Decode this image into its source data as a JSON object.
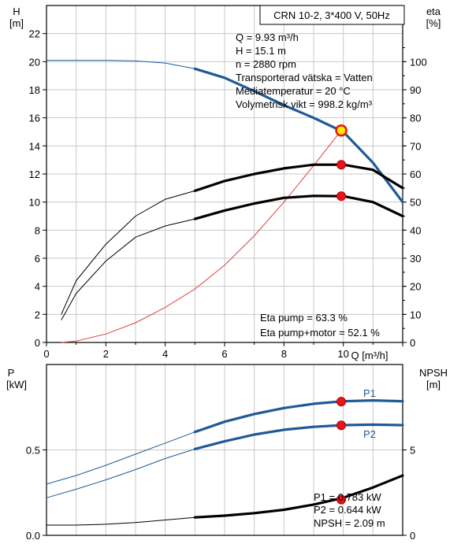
{
  "chart_data": [
    {
      "type": "line",
      "title": "CRN 10-2, 3*400 V, 50Hz",
      "xlabel": "Q [m³/h]",
      "ylabel_left": "H",
      "ylabel_left_unit": "[m]",
      "ylabel_right": "eta",
      "ylabel_right_unit": "[%]",
      "xlim": [
        0,
        12
      ],
      "ylim_left": [
        0,
        24
      ],
      "ylim_right": [
        0,
        120
      ],
      "x_ticks": [
        "0",
        "2",
        "4",
        "6",
        "8",
        "10"
      ],
      "y_left_ticks": [
        "0",
        "2",
        "4",
        "6",
        "8",
        "10",
        "12",
        "14",
        "16",
        "18",
        "20",
        "22"
      ],
      "y_right_ticks": [
        "0",
        "10",
        "20",
        "30",
        "40",
        "50",
        "60",
        "70",
        "80",
        "90",
        "100"
      ],
      "grid": true,
      "info_lines": [
        "Q = 9.93 m³/h",
        "H = 15.1 m",
        "n = 2880 rpm",
        "Transporterad vätska = Vatten",
        "Mediatemperatur = 20 °C",
        "Volymetrisk vikt = 998.2 kg/m³"
      ],
      "eff_lines": [
        "Eta pump = 63.3 %",
        "Eta pump+motor = 52.1 %"
      ],
      "duty_point": {
        "q": 9.93,
        "h": 15.1,
        "eta_pump": 63.3,
        "eta_total": 52.1
      },
      "series": [
        {
          "key": "head",
          "axis": "left",
          "color": "#1f5a96",
          "thick_from": 5,
          "x": [
            0.0,
            1,
            2,
            3,
            4,
            5,
            6,
            7,
            8,
            9,
            10,
            11,
            12
          ],
          "y": [
            20.1,
            20.1,
            20.1,
            20.05,
            19.9,
            19.5,
            18.85,
            17.9,
            16.9,
            16.0,
            15.0,
            12.8,
            10.0
          ]
        },
        {
          "key": "system",
          "axis": "left",
          "color": "#e04040",
          "thick_from": 99,
          "x": [
            0.5,
            1,
            2,
            3,
            4,
            5,
            6,
            7,
            8,
            9,
            9.93
          ],
          "y": [
            0.0,
            0.1,
            0.6,
            1.4,
            2.5,
            3.8,
            5.5,
            7.6,
            10.0,
            12.6,
            15.1
          ]
        },
        {
          "key": "eta_pump",
          "axis": "right",
          "color": "#000000",
          "thick_from": 5,
          "x": [
            0.5,
            1,
            2,
            3,
            4,
            5,
            6,
            7,
            8,
            9,
            10,
            11,
            12
          ],
          "y": [
            10.0,
            22.0,
            35.0,
            45.0,
            51.0,
            54.0,
            57.5,
            60.0,
            62.0,
            63.3,
            63.3,
            61.5,
            55.0
          ]
        },
        {
          "key": "eta_total",
          "axis": "right",
          "color": "#000000",
          "thick_from": 5,
          "x": [
            0.5,
            1,
            2,
            3,
            4,
            5,
            6,
            7,
            8,
            9,
            10,
            11,
            12
          ],
          "y": [
            8.0,
            17.5,
            29.0,
            37.5,
            41.5,
            44.0,
            47.0,
            49.5,
            51.5,
            52.2,
            52.1,
            50.0,
            45.0
          ]
        }
      ]
    },
    {
      "type": "line",
      "ylabel_left": "P",
      "ylabel_left_unit": "[kW]",
      "ylabel_right": "NPSH",
      "ylabel_right_unit": "[m]",
      "xlim": [
        0,
        12
      ],
      "ylim_left": [
        0,
        1.0
      ],
      "ylim_right": [
        0,
        10
      ],
      "y_left_ticks": [
        "0.0",
        "0.5"
      ],
      "y_right_ticks": [
        "0",
        "5"
      ],
      "grid": true,
      "curve_labels": [
        "P1",
        "P2"
      ],
      "value_lines": [
        "P1 = 0.783 kW",
        "P2 = 0.644 kW",
        "NPSH = 2.09 m"
      ],
      "duty_point": {
        "q": 9.93,
        "p1": 0.783,
        "p2": 0.644,
        "npsh": 2.09
      },
      "series": [
        {
          "key": "p1",
          "axis": "left",
          "color": "#1f5a96",
          "thick_from": 5,
          "x": [
            0,
            1,
            2,
            3,
            4,
            5,
            6,
            7,
            8,
            9,
            10,
            11,
            12
          ],
          "y": [
            0.3,
            0.35,
            0.41,
            0.475,
            0.54,
            0.605,
            0.665,
            0.71,
            0.745,
            0.77,
            0.785,
            0.79,
            0.785
          ]
        },
        {
          "key": "p2",
          "axis": "left",
          "color": "#1f5a96",
          "thick_from": 5,
          "x": [
            0,
            1,
            2,
            3,
            4,
            5,
            6,
            7,
            8,
            9,
            10,
            11,
            12
          ],
          "y": [
            0.22,
            0.27,
            0.325,
            0.385,
            0.45,
            0.505,
            0.55,
            0.59,
            0.618,
            0.635,
            0.645,
            0.648,
            0.645
          ]
        },
        {
          "key": "npsh",
          "axis": "right",
          "color": "#000000",
          "thick_from": 5,
          "x": [
            0,
            1,
            2,
            3,
            4,
            5,
            6,
            7,
            8,
            9,
            10,
            11,
            12
          ],
          "y": [
            0.6,
            0.6,
            0.65,
            0.75,
            0.9,
            1.05,
            1.15,
            1.3,
            1.5,
            1.8,
            2.2,
            2.8,
            3.5
          ]
        }
      ]
    }
  ]
}
